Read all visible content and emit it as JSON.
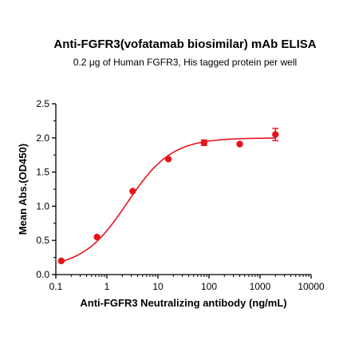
{
  "chart_data": {
    "type": "scatter",
    "title": "Anti-FGFR3(vofatamab biosimilar) mAb ELISA",
    "subtitle": "0.2 μg of Human FGFR3, His tagged protein per well",
    "xlabel": "Anti-FGFR3 Neutralizing antibody (ng/mL)",
    "ylabel": "Mean Abs.(OD450)",
    "x_scale": "log",
    "xlim": [
      0.1,
      10000
    ],
    "ylim": [
      0,
      2.5
    ],
    "x_ticks": [
      "0.1",
      "1",
      "10",
      "100",
      "1000",
      "10000"
    ],
    "y_ticks": [
      "0.0",
      "0.5",
      "1.0",
      "1.5",
      "2.0",
      "2.5"
    ],
    "color": "#e8141b",
    "series": [
      {
        "x": [
          0.128,
          0.64,
          3.2,
          16,
          80,
          400,
          2000
        ],
        "y": [
          0.2,
          0.55,
          1.22,
          1.69,
          1.93,
          1.91,
          2.05
        ],
        "error": [
          0.0,
          0.0,
          0.0,
          0.0,
          0.04,
          0.0,
          0.09
        ]
      }
    ],
    "fit_curve": {
      "bottom": 0.1,
      "top": 2.0,
      "ec50": 2.5,
      "hill": 1.0
    }
  }
}
